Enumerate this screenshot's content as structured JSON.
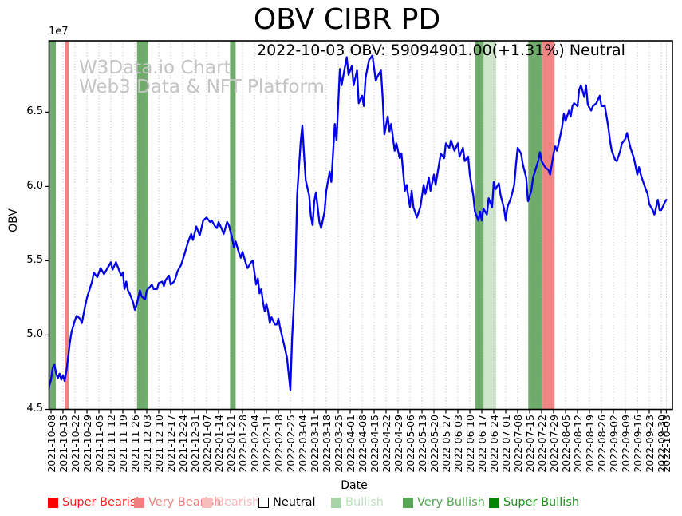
{
  "figure": {
    "title": "OBV CIBR PD",
    "subtitle": "2022-10-03 OBV: 59094901.00(+1.31%) Neutral",
    "watermark_line1": "W3Data.io Chart",
    "watermark_line2": "Web3 Data & NFT Platform"
  },
  "colors": {
    "line": "#0000ee",
    "grid": "#aaaaaa",
    "spine": "#000000",
    "watermark": "#c4c4c4",
    "band_very_bullish": "#6fac6c",
    "band_bullish": "#cfe5cc",
    "band_very_bearish": "#f28383"
  },
  "chart_data": {
    "type": "line",
    "title": "OBV CIBR PD",
    "subtitle": "2022-10-03 OBV: 59094901.00(+1.31%) Neutral",
    "xlabel": "Date",
    "ylabel": "OBV",
    "y_offset_label": "1e7",
    "y_unit": 10000000,
    "ylim": [
      4.5,
      6.98
    ],
    "y_ticks": [
      "4.5",
      "5.0",
      "5.5",
      "6.0",
      "6.5"
    ],
    "start_date": "2021-10-08",
    "x_tick_days": [
      0,
      7,
      14,
      21,
      28,
      35,
      42,
      49,
      56,
      63,
      70,
      77,
      84,
      91,
      98,
      105,
      112,
      119,
      126,
      133,
      140,
      147,
      154,
      161,
      168,
      175,
      182,
      189,
      196,
      203,
      210,
      217,
      224,
      231,
      238,
      245,
      252,
      259,
      266,
      273,
      280,
      287,
      294,
      301,
      308,
      315,
      322,
      329,
      336,
      343,
      350,
      357,
      360
    ],
    "x_tick_labels": [
      "2021-10-08",
      "2021-10-15",
      "2021-10-22",
      "2021-10-29",
      "2021-11-05",
      "2021-11-12",
      "2021-11-19",
      "2021-11-26",
      "2021-12-03",
      "2021-12-10",
      "2021-12-17",
      "2021-12-24",
      "2021-12-31",
      "2022-01-07",
      "2022-01-14",
      "2022-01-21",
      "2022-01-28",
      "2022-02-04",
      "2022-02-11",
      "2022-02-18",
      "2022-02-25",
      "2022-03-04",
      "2022-03-11",
      "2022-03-18",
      "2022-03-25",
      "2022-04-01",
      "2022-04-08",
      "2022-04-15",
      "2022-04-22",
      "2022-04-29",
      "2022-05-06",
      "2022-05-13",
      "2022-05-20",
      "2022-05-27",
      "2022-06-03",
      "2022-06-10",
      "2022-06-17",
      "2022-06-24",
      "2022-07-01",
      "2022-07-08",
      "2022-07-15",
      "2022-07-22",
      "2022-07-29",
      "2022-08-05",
      "2022-08-12",
      "2022-08-19",
      "2022-08-26",
      "2022-09-02",
      "2022-09-09",
      "2022-09-16",
      "2022-09-23",
      "2022-09-30",
      "2022-10-03"
    ],
    "legend": [
      {
        "label": "Super Bearish",
        "patch": "#ff0000",
        "text": "#ff1f1f",
        "border": "#ff0000"
      },
      {
        "label": "Very Bearish",
        "patch": "#f08080",
        "text": "#f08080",
        "border": "#f08080"
      },
      {
        "label": "Bearish",
        "patch": "#f7bcbc",
        "text": "#fab8b8",
        "border": "#f7bcbc"
      },
      {
        "label": "Neutral",
        "patch": "#ffffff",
        "text": "#000000",
        "border": "#000000"
      },
      {
        "label": "Bullish",
        "patch": "#a9d3a9",
        "text": "#bcdebc",
        "border": "#a9d3a9"
      },
      {
        "label": "Very Bullish",
        "patch": "#57a757",
        "text": "#4fa64f",
        "border": "#57a757"
      },
      {
        "label": "Super Bullish",
        "patch": "#068406",
        "text": "#1d8f1d",
        "border": "#068406"
      }
    ],
    "bands": [
      {
        "from_day": -2.5,
        "to_day": 2.8,
        "kind": "very_bullish"
      },
      {
        "from_day": 8.3,
        "to_day": 10.3,
        "kind": "very_bearish"
      },
      {
        "from_day": 50.3,
        "to_day": 56.8,
        "kind": "very_bullish"
      },
      {
        "from_day": 104.7,
        "to_day": 108.0,
        "kind": "very_bullish"
      },
      {
        "from_day": 248.3,
        "to_day": 253.1,
        "kind": "very_bullish"
      },
      {
        "from_day": 253.1,
        "to_day": 260.5,
        "kind": "bullish"
      },
      {
        "from_day": 279.2,
        "to_day": 287.6,
        "kind": "very_bullish"
      },
      {
        "from_day": 287.6,
        "to_day": 294.6,
        "kind": "very_bearish"
      }
    ],
    "series": [
      {
        "name": "OBV",
        "color": "#0000ee",
        "points": [
          [
            -1.5,
            4.63
          ],
          [
            -1,
            4.66
          ],
          [
            0,
            4.7
          ],
          [
            1,
            4.78
          ],
          [
            2,
            4.8
          ],
          [
            3,
            4.74
          ],
          [
            4,
            4.71
          ],
          [
            5,
            4.74
          ],
          [
            6,
            4.7
          ],
          [
            7,
            4.73
          ],
          [
            8,
            4.69
          ],
          [
            9,
            4.76
          ],
          [
            10,
            4.85
          ],
          [
            11,
            4.95
          ],
          [
            12,
            5.02
          ],
          [
            14,
            5.1
          ],
          [
            15,
            5.13
          ],
          [
            17,
            5.11
          ],
          [
            18,
            5.08
          ],
          [
            20,
            5.2
          ],
          [
            21,
            5.25
          ],
          [
            24,
            5.36
          ],
          [
            25,
            5.42
          ],
          [
            27,
            5.39
          ],
          [
            28,
            5.42
          ],
          [
            29,
            5.45
          ],
          [
            31,
            5.41
          ],
          [
            32,
            5.43
          ],
          [
            34,
            5.47
          ],
          [
            35,
            5.49
          ],
          [
            36,
            5.44
          ],
          [
            38,
            5.49
          ],
          [
            39,
            5.46
          ],
          [
            41,
            5.4
          ],
          [
            42,
            5.42
          ],
          [
            43,
            5.31
          ],
          [
            44,
            5.36
          ],
          [
            45,
            5.3
          ],
          [
            46,
            5.28
          ],
          [
            48,
            5.22
          ],
          [
            49,
            5.17
          ],
          [
            50,
            5.2
          ],
          [
            52,
            5.3
          ],
          [
            53,
            5.26
          ],
          [
            55,
            5.24
          ],
          [
            56,
            5.3
          ],
          [
            59,
            5.34
          ],
          [
            60,
            5.31
          ],
          [
            62,
            5.31
          ],
          [
            63,
            5.35
          ],
          [
            65,
            5.36
          ],
          [
            66,
            5.33
          ],
          [
            67,
            5.37
          ],
          [
            69,
            5.4
          ],
          [
            70,
            5.34
          ],
          [
            72,
            5.36
          ],
          [
            73,
            5.39
          ],
          [
            74,
            5.43
          ],
          [
            76,
            5.47
          ],
          [
            78,
            5.54
          ],
          [
            80,
            5.62
          ],
          [
            82,
            5.68
          ],
          [
            83,
            5.64
          ],
          [
            85,
            5.73
          ],
          [
            87,
            5.67
          ],
          [
            88,
            5.72
          ],
          [
            89,
            5.77
          ],
          [
            91,
            5.79
          ],
          [
            93,
            5.76
          ],
          [
            94,
            5.77
          ],
          [
            96,
            5.73
          ],
          [
            97,
            5.72
          ],
          [
            98,
            5.76
          ],
          [
            100,
            5.71
          ],
          [
            101,
            5.68
          ],
          [
            103,
            5.76
          ],
          [
            104,
            5.74
          ],
          [
            106,
            5.65
          ],
          [
            107,
            5.59
          ],
          [
            108,
            5.63
          ],
          [
            110,
            5.55
          ],
          [
            111,
            5.52
          ],
          [
            112,
            5.56
          ],
          [
            114,
            5.48
          ],
          [
            115,
            5.45
          ],
          [
            117,
            5.49
          ],
          [
            118,
            5.5
          ],
          [
            119,
            5.42
          ],
          [
            120,
            5.34
          ],
          [
            121,
            5.38
          ],
          [
            122,
            5.28
          ],
          [
            123,
            5.31
          ],
          [
            124,
            5.22
          ],
          [
            125,
            5.16
          ],
          [
            126,
            5.21
          ],
          [
            127,
            5.16
          ],
          [
            128,
            5.08
          ],
          [
            129,
            5.12
          ],
          [
            131,
            5.07
          ],
          [
            132,
            5.07
          ],
          [
            133,
            5.11
          ],
          [
            134,
            5.05
          ],
          [
            135,
            5.0
          ],
          [
            137,
            4.9
          ],
          [
            138,
            4.85
          ],
          [
            140,
            4.63
          ],
          [
            141,
            4.97
          ],
          [
            142,
            5.2
          ],
          [
            143,
            5.45
          ],
          [
            144,
            5.95
          ],
          [
            146,
            6.3
          ],
          [
            147,
            6.41
          ],
          [
            148,
            6.22
          ],
          [
            149,
            6.04
          ],
          [
            151,
            5.94
          ],
          [
            152,
            5.8
          ],
          [
            153,
            5.74
          ],
          [
            154,
            5.9
          ],
          [
            155,
            5.96
          ],
          [
            157,
            5.76
          ],
          [
            158,
            5.72
          ],
          [
            160,
            5.83
          ],
          [
            161,
            5.97
          ],
          [
            163,
            6.1
          ],
          [
            164,
            6.03
          ],
          [
            166,
            6.42
          ],
          [
            167,
            6.31
          ],
          [
            169,
            6.79
          ],
          [
            170,
            6.68
          ],
          [
            173,
            6.87
          ],
          [
            174,
            6.75
          ],
          [
            176,
            6.81
          ],
          [
            177,
            6.68
          ],
          [
            179,
            6.78
          ],
          [
            180,
            6.56
          ],
          [
            182,
            6.61
          ],
          [
            183,
            6.54
          ],
          [
            184,
            6.73
          ],
          [
            186,
            6.85
          ],
          [
            188,
            6.88
          ],
          [
            190,
            6.71
          ],
          [
            191,
            6.74
          ],
          [
            193,
            6.78
          ],
          [
            194,
            6.6
          ],
          [
            195,
            6.35
          ],
          [
            197,
            6.47
          ],
          [
            198,
            6.37
          ],
          [
            199,
            6.42
          ],
          [
            201,
            6.24
          ],
          [
            202,
            6.29
          ],
          [
            204,
            6.19
          ],
          [
            205,
            6.22
          ],
          [
            207,
            5.97
          ],
          [
            208,
            6.01
          ],
          [
            210,
            5.86
          ],
          [
            211,
            5.97
          ],
          [
            212,
            5.86
          ],
          [
            214,
            5.79
          ],
          [
            216,
            5.86
          ],
          [
            218,
            6.01
          ],
          [
            219,
            5.95
          ],
          [
            221,
            6.06
          ],
          [
            222,
            5.97
          ],
          [
            224,
            6.08
          ],
          [
            225,
            6.01
          ],
          [
            227,
            6.15
          ],
          [
            228,
            6.22
          ],
          [
            230,
            6.19
          ],
          [
            231,
            6.29
          ],
          [
            233,
            6.26
          ],
          [
            234,
            6.31
          ],
          [
            236,
            6.24
          ],
          [
            238,
            6.29
          ],
          [
            239,
            6.2
          ],
          [
            241,
            6.26
          ],
          [
            242,
            6.17
          ],
          [
            244,
            6.2
          ],
          [
            245,
            6.08
          ],
          [
            247,
            5.94
          ],
          [
            248,
            5.83
          ],
          [
            250,
            5.77
          ],
          [
            251,
            5.83
          ],
          [
            252,
            5.77
          ],
          [
            253,
            5.85
          ],
          [
            255,
            5.81
          ],
          [
            256,
            5.92
          ],
          [
            258,
            5.86
          ],
          [
            259,
            6.03
          ],
          [
            260,
            5.98
          ],
          [
            262,
            6.02
          ],
          [
            263,
            5.94
          ],
          [
            265,
            5.85
          ],
          [
            266,
            5.77
          ],
          [
            267,
            5.86
          ],
          [
            269,
            5.92
          ],
          [
            271,
            6.01
          ],
          [
            272,
            6.15
          ],
          [
            273,
            6.26
          ],
          [
            275,
            6.22
          ],
          [
            276,
            6.15
          ],
          [
            278,
            6.06
          ],
          [
            279,
            5.9
          ],
          [
            281,
            5.97
          ],
          [
            282,
            6.06
          ],
          [
            285,
            6.17
          ],
          [
            286,
            6.23
          ],
          [
            287,
            6.17
          ],
          [
            289,
            6.13
          ],
          [
            291,
            6.11
          ],
          [
            292,
            6.08
          ],
          [
            294,
            6.22
          ],
          [
            295,
            6.27
          ],
          [
            296,
            6.24
          ],
          [
            297,
            6.29
          ],
          [
            299,
            6.4
          ],
          [
            300,
            6.49
          ],
          [
            301,
            6.44
          ],
          [
            303,
            6.51
          ],
          [
            304,
            6.47
          ],
          [
            305,
            6.54
          ],
          [
            306,
            6.56
          ],
          [
            308,
            6.54
          ],
          [
            309,
            6.65
          ],
          [
            310,
            6.68
          ],
          [
            312,
            6.6
          ],
          [
            313,
            6.68
          ],
          [
            314,
            6.55
          ],
          [
            316,
            6.51
          ],
          [
            317,
            6.54
          ],
          [
            319,
            6.56
          ],
          [
            321,
            6.61
          ],
          [
            322,
            6.54
          ],
          [
            324,
            6.54
          ],
          [
            326,
            6.4
          ],
          [
            327,
            6.31
          ],
          [
            328,
            6.24
          ],
          [
            330,
            6.18
          ],
          [
            331,
            6.17
          ],
          [
            333,
            6.24
          ],
          [
            334,
            6.29
          ],
          [
            336,
            6.32
          ],
          [
            337,
            6.36
          ],
          [
            339,
            6.26
          ],
          [
            341,
            6.19
          ],
          [
            343,
            6.08
          ],
          [
            344,
            6.13
          ],
          [
            345,
            6.08
          ],
          [
            347,
            6.01
          ],
          [
            349,
            5.95
          ],
          [
            350,
            5.88
          ],
          [
            352,
            5.84
          ],
          [
            353,
            5.81
          ],
          [
            354,
            5.86
          ],
          [
            355,
            5.91
          ],
          [
            356,
            5.84
          ],
          [
            357,
            5.84
          ],
          [
            359,
            5.89
          ],
          [
            360,
            5.91
          ]
        ]
      }
    ]
  }
}
